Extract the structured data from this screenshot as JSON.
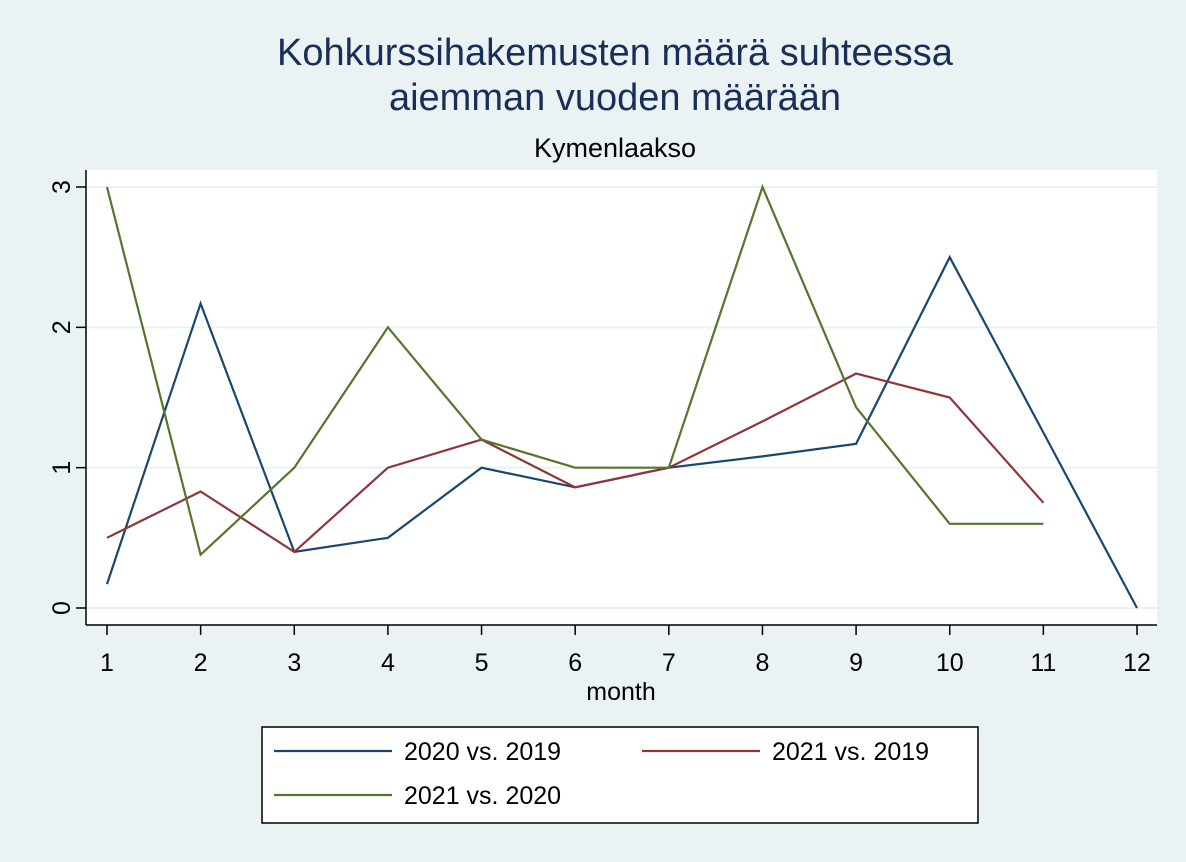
{
  "chart_data": {
    "type": "line",
    "title_lines": [
      "Kohkurssihakemusten määrä suhteessa",
      "aiemman vuoden määrään"
    ],
    "subtitle": "Kymenlaakso",
    "xlabel": "month",
    "ylabel": "",
    "x": [
      1,
      2,
      3,
      4,
      5,
      6,
      7,
      8,
      9,
      10,
      11,
      12
    ],
    "xlim": [
      1,
      12
    ],
    "ylim": [
      0,
      3
    ],
    "xticks": [
      1,
      2,
      3,
      4,
      5,
      6,
      7,
      8,
      9,
      10,
      11,
      12
    ],
    "yticks": [
      0,
      1,
      2,
      3
    ],
    "grid": "horizontal",
    "legend_position": "bottom",
    "series": [
      {
        "name": "2020 vs. 2019",
        "color": "#1a476f",
        "values": [
          0.17,
          2.17,
          0.4,
          0.5,
          1.0,
          0.86,
          1.0,
          1.08,
          1.17,
          2.5,
          1.25,
          0.0
        ]
      },
      {
        "name": "2021 vs. 2019",
        "color": "#90353b",
        "values": [
          0.5,
          0.83,
          0.4,
          1.0,
          1.2,
          0.86,
          1.0,
          1.33,
          1.67,
          1.5,
          0.75,
          null
        ]
      },
      {
        "name": "2021 vs. 2020",
        "color": "#55752f",
        "values": [
          3.0,
          0.38,
          1.0,
          2.0,
          1.2,
          1.0,
          1.0,
          3.0,
          1.43,
          0.6,
          0.6,
          null
        ]
      }
    ]
  }
}
